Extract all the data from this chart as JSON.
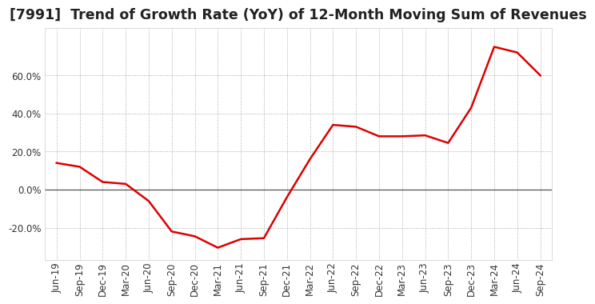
{
  "title": "[7991]  Trend of Growth Rate (YoY) of 12-Month Moving Sum of Revenues",
  "line_color": "#dd0000",
  "background_color": "#ffffff",
  "plot_bg_color": "#ffffff",
  "grid_color": "#999999",
  "zero_line_color": "#555555",
  "labels": [
    "Jun-19",
    "Sep-19",
    "Dec-19",
    "Mar-20",
    "Jun-20",
    "Sep-20",
    "Dec-20",
    "Mar-21",
    "Jun-21",
    "Sep-21",
    "Dec-21",
    "Mar-22",
    "Jun-22",
    "Sep-22",
    "Dec-22",
    "Mar-23",
    "Jun-23",
    "Sep-23",
    "Dec-23",
    "Mar-24",
    "Jun-24",
    "Sep-24"
  ],
  "values": [
    14.0,
    12.0,
    4.0,
    3.0,
    -6.0,
    -22.0,
    -24.5,
    -30.5,
    -26.0,
    -25.5,
    -4.0,
    16.0,
    34.0,
    33.0,
    28.0,
    28.0,
    28.5,
    24.5,
    43.0,
    75.0,
    72.0,
    60.0
  ],
  "yticks": [
    -20.0,
    0.0,
    20.0,
    40.0,
    60.0
  ],
  "ylim": [
    -37,
    85
  ],
  "title_fontsize": 12.5,
  "tick_fontsize": 8.5,
  "line_width": 1.8
}
